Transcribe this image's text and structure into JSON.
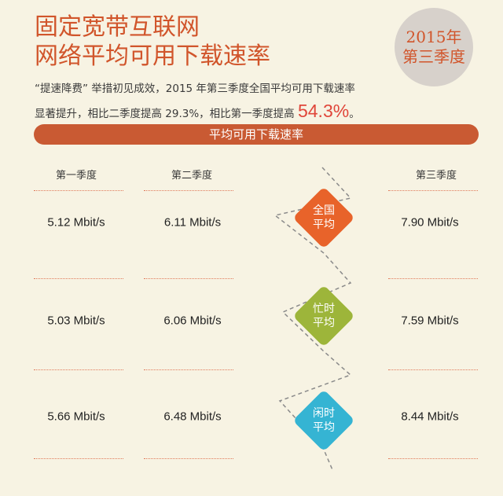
{
  "title": {
    "line1": "固定宽带互联网",
    "line2": "网络平均可用下载速率"
  },
  "badge": {
    "year": "2015年",
    "quarter": "第三季度"
  },
  "intro": {
    "line1": "“提速降费” 举措初见成效，2015 年第三季度全国平均可用下载速率",
    "line2_prefix": "显著提升，相比二季度提高 29.3%，相比第一季度提高 ",
    "line2_pct": "54.3%",
    "line2_suffix": "。"
  },
  "bar_label": "平均可用下载速率",
  "columns": {
    "q1": "第一季度",
    "q2": "第二季度",
    "q3": "第三季度"
  },
  "rows": [
    {
      "q1": "5.12 Mbit/s",
      "q2": "6.11 Mbit/s",
      "q3": "7.90 Mbit/s",
      "label_top": "全国",
      "label_bottom": "平均"
    },
    {
      "q1": "5.03 Mbit/s",
      "q2": "6.06 Mbit/s",
      "q3": "7.59 Mbit/s",
      "label_top": "忙时",
      "label_bottom": "平均"
    },
    {
      "q1": "5.66 Mbit/s",
      "q2": "6.48 Mbit/s",
      "q3": "8.44 Mbit/s",
      "label_top": "闲时",
      "label_bottom": "平均"
    }
  ],
  "colors": {
    "accent": "#d1552b",
    "bar": "#c95a33",
    "orange": "#e8632a",
    "green": "#9db53a",
    "blue": "#35b4d3"
  }
}
